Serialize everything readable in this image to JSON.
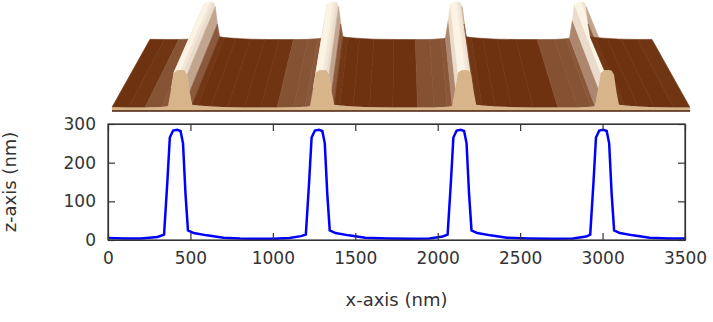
{
  "chart_data": {
    "type": "line",
    "xlabel": "x-axis (nm)",
    "ylabel": "z-axis (nm)",
    "x": [
      0,
      100,
      200,
      300,
      340,
      360,
      375,
      395,
      420,
      440,
      455,
      470,
      485,
      520,
      600,
      700,
      800,
      900,
      1000,
      1100,
      1170,
      1200,
      1220,
      1235,
      1255,
      1280,
      1300,
      1315,
      1330,
      1345,
      1380,
      1460,
      1560,
      1700,
      1850,
      1950,
      2030,
      2060,
      2080,
      2095,
      2115,
      2140,
      2160,
      2175,
      2190,
      2205,
      2240,
      2320,
      2420,
      2550,
      2700,
      2820,
      2900,
      2925,
      2945,
      2960,
      2980,
      3005,
      3025,
      3040,
      3055,
      3070,
      3105,
      3185,
      3285,
      3400,
      3500
    ],
    "values": [
      5,
      4,
      4,
      8,
      14,
      150,
      265,
      283,
      285,
      282,
      250,
      120,
      25,
      18,
      12,
      6,
      4,
      3,
      3,
      5,
      10,
      14,
      150,
      265,
      283,
      285,
      282,
      250,
      120,
      25,
      18,
      12,
      6,
      4,
      3,
      4,
      9,
      14,
      150,
      265,
      283,
      285,
      282,
      250,
      120,
      25,
      18,
      12,
      6,
      4,
      3,
      4,
      9,
      14,
      150,
      265,
      283,
      285,
      282,
      250,
      120,
      25,
      18,
      12,
      6,
      4,
      4
    ],
    "color": "#0000ff",
    "line_style": "solid",
    "xlim": [
      0,
      3500
    ],
    "ylim": [
      0,
      300
    ],
    "xticks": [
      0,
      500,
      1000,
      1500,
      2000,
      2500,
      3000,
      3500
    ],
    "yticks": [
      0,
      100,
      200,
      300
    ],
    "grid": false
  }
}
